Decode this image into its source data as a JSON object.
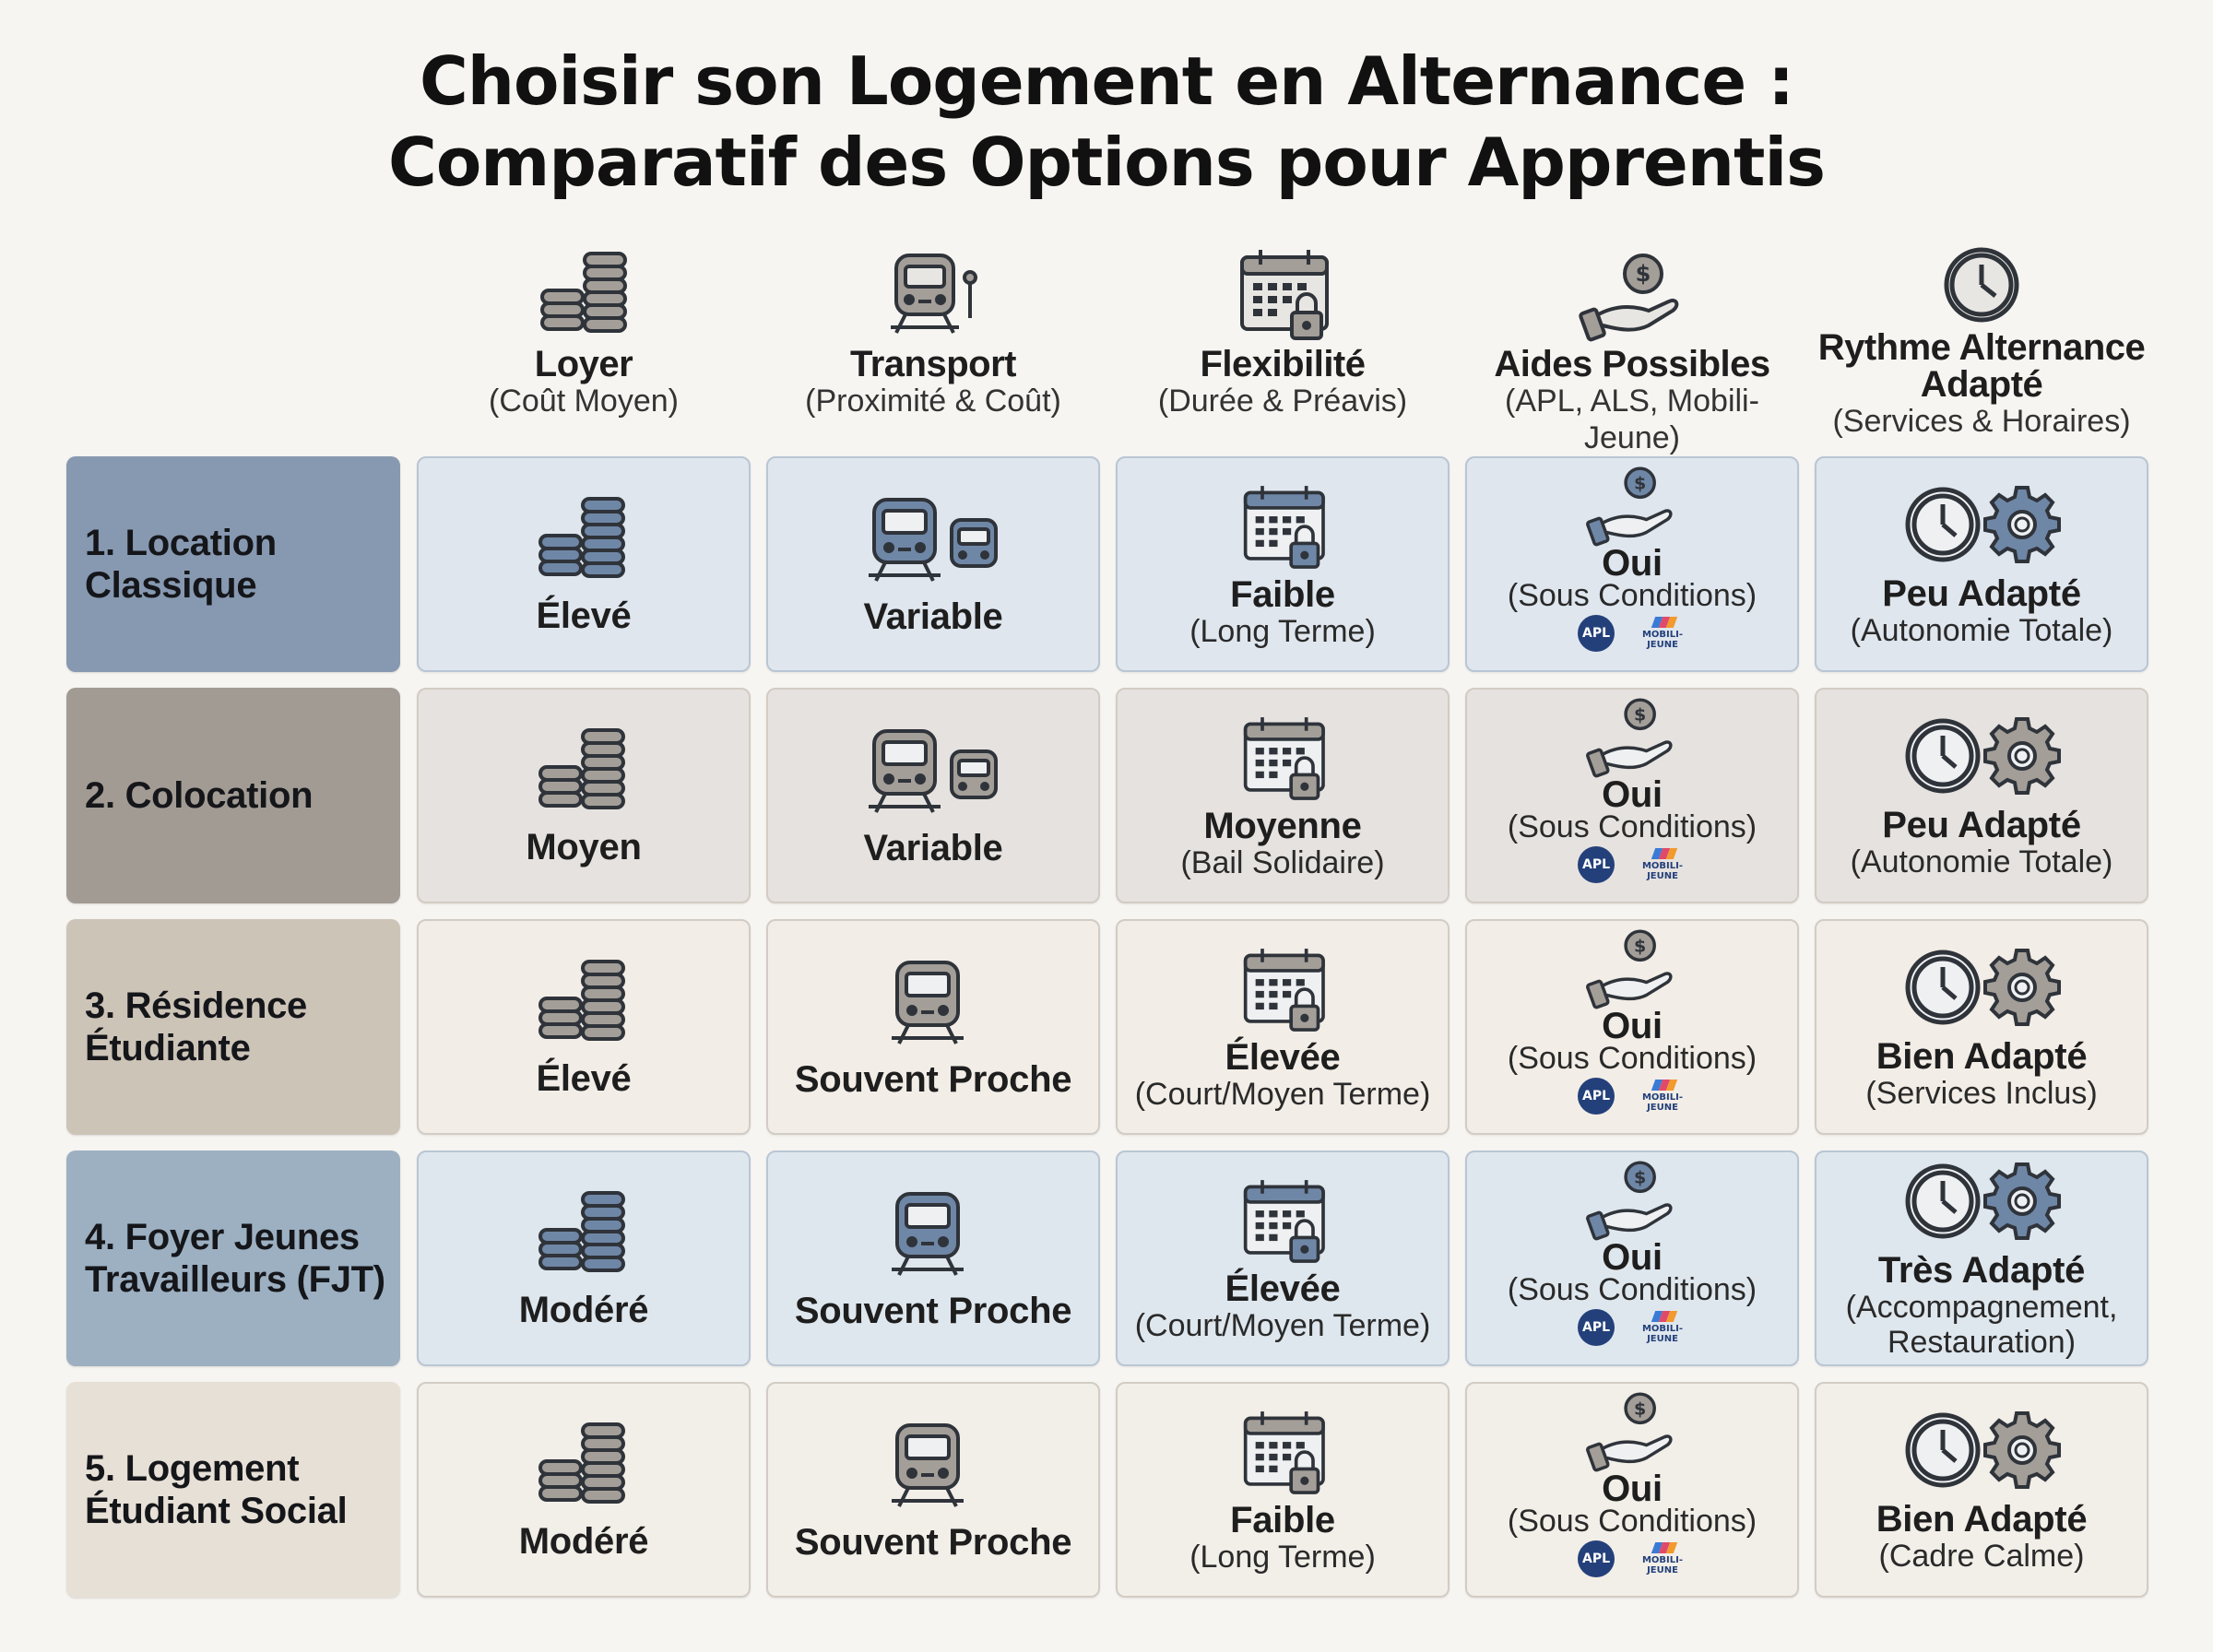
{
  "title_lines": [
    "Choisir son Logement en Alternance :",
    "Comparatif des Options pour Apprentis"
  ],
  "columns": [
    {
      "label": "Loyer",
      "sub": "(Coût Moyen)",
      "icon": "coins-icon"
    },
    {
      "label": "Transport",
      "sub": "(Proximité & Coût)",
      "icon": "train-icon"
    },
    {
      "label": "Flexibilité",
      "sub": "(Durée & Préavis)",
      "icon": "calendar-lock-icon"
    },
    {
      "label": "Aides Possibles",
      "sub": "(APL, ALS, Mobili-Jeune)",
      "icon": "hand-money-icon"
    },
    {
      "label": "Rythme Alternance Adapté",
      "sub": "(Services & Horaires)",
      "icon": "clock-icon"
    }
  ],
  "colors": {
    "row1_label": "#8799b1",
    "row1_cell": "#dfe6ee",
    "row2_label": "#a29b94",
    "row2_cell": "#e6e2df",
    "row3_label": "#cdc4b8",
    "row3_cell": "#f2ede6",
    "row4_label": "#9cb0c2",
    "row4_cell": "#dfe7ee",
    "row5_label": "#e6e0d6",
    "row5_cell": "#f2eee8",
    "icon_dark": "#3a3f47",
    "icon_gray": "#a39e98",
    "icon_blue": "#6f87a6",
    "apl_blue": "#23407a"
  },
  "badges": {
    "apl": "APL",
    "mobili_1": "MOBILI-",
    "mobili_2": "JEUNE"
  },
  "rows": [
    {
      "label": "1. Location Classique",
      "loyer": "Élevé",
      "transport": "Variable",
      "flex": {
        "value": "Faible",
        "sub": "(Long Terme)"
      },
      "aides": {
        "value": "Oui",
        "sub": "(Sous Conditions)"
      },
      "rythme": {
        "value": "Peu Adapté",
        "sub": "(Autonomie Totale)"
      }
    },
    {
      "label": "2. Colocation",
      "loyer": "Moyen",
      "transport": "Variable",
      "flex": {
        "value": "Moyenne",
        "sub": "(Bail Solidaire)"
      },
      "aides": {
        "value": "Oui",
        "sub": "(Sous Conditions)"
      },
      "rythme": {
        "value": "Peu Adapté",
        "sub": "(Autonomie Totale)"
      }
    },
    {
      "label": "3. Résidence Étudiante",
      "loyer": "Élevé",
      "transport": "Souvent Proche",
      "flex": {
        "value": "Élevée",
        "sub": "(Court/Moyen Terme)"
      },
      "aides": {
        "value": "Oui",
        "sub": "(Sous Conditions)"
      },
      "rythme": {
        "value": "Bien Adapté",
        "sub": "(Services Inclus)"
      }
    },
    {
      "label": "4. Foyer Jeunes Travailleurs (FJT)",
      "loyer": "Modéré",
      "transport": "Souvent Proche",
      "flex": {
        "value": "Élevée",
        "sub": "(Court/Moyen Terme)"
      },
      "aides": {
        "value": "Oui",
        "sub": "(Sous Conditions)"
      },
      "rythme": {
        "value": "Très Adapté",
        "sub": "(Accompagnement, Restauration)"
      }
    },
    {
      "label": "5. Logement Étudiant Social",
      "loyer": "Modéré",
      "transport": "Souvent Proche",
      "flex": {
        "value": "Faible",
        "sub": "(Long Terme)"
      },
      "aides": {
        "value": "Oui",
        "sub": "(Sous Conditions)"
      },
      "rythme": {
        "value": "Bien Adapté",
        "sub": "(Cadre Calme)"
      }
    }
  ]
}
